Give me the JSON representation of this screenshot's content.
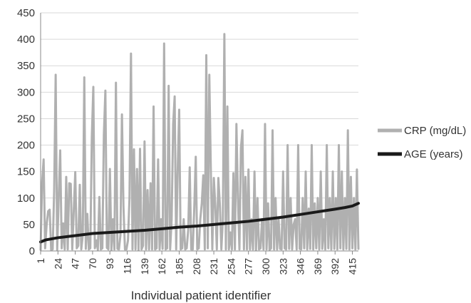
{
  "chart_data": {
    "type": "line",
    "xlabel": "Individual patient identifier",
    "ylabel": "",
    "ylim": [
      0,
      450
    ],
    "yticks": [
      0,
      50,
      100,
      150,
      200,
      250,
      300,
      350,
      400,
      450
    ],
    "xlim": [
      1,
      423
    ],
    "xticks": [
      1,
      24,
      47,
      70,
      93,
      116,
      139,
      162,
      185,
      208,
      231,
      254,
      277,
      300,
      323,
      346,
      369,
      392,
      415
    ],
    "grid": true,
    "legend_position": "right",
    "colors": {
      "crp": "#b0b0b0",
      "age": "#1a1a1a",
      "grid": "#d9d9d9",
      "axis": "#888888"
    },
    "series": [
      {
        "name": "CRP (mg/dL)",
        "key": "crp",
        "points": [
          [
            1,
            2
          ],
          [
            3,
            130
          ],
          [
            5,
            173
          ],
          [
            7,
            5
          ],
          [
            9,
            50
          ],
          [
            11,
            75
          ],
          [
            13,
            78
          ],
          [
            15,
            2
          ],
          [
            17,
            3
          ],
          [
            19,
            114
          ],
          [
            21,
            333
          ],
          [
            23,
            2
          ],
          [
            25,
            100
          ],
          [
            27,
            190
          ],
          [
            29,
            5
          ],
          [
            31,
            52
          ],
          [
            33,
            3
          ],
          [
            35,
            140
          ],
          [
            37,
            3
          ],
          [
            39,
            128
          ],
          [
            41,
            127
          ],
          [
            43,
            3
          ],
          [
            45,
            75
          ],
          [
            47,
            149
          ],
          [
            49,
            5
          ],
          [
            51,
            10
          ],
          [
            53,
            125
          ],
          [
            55,
            3
          ],
          [
            57,
            30
          ],
          [
            59,
            328
          ],
          [
            61,
            4
          ],
          [
            63,
            70
          ],
          [
            65,
            3
          ],
          [
            67,
            5
          ],
          [
            69,
            215
          ],
          [
            71,
            310
          ],
          [
            73,
            5
          ],
          [
            75,
            20
          ],
          [
            77,
            2
          ],
          [
            79,
            102
          ],
          [
            81,
            3
          ],
          [
            83,
            5
          ],
          [
            85,
            220
          ],
          [
            87,
            303
          ],
          [
            89,
            6
          ],
          [
            91,
            3
          ],
          [
            93,
            155
          ],
          [
            95,
            2
          ],
          [
            97,
            60
          ],
          [
            99,
            3
          ],
          [
            101,
            318
          ],
          [
            103,
            4
          ],
          [
            105,
            3
          ],
          [
            107,
            30
          ],
          [
            109,
            258
          ],
          [
            111,
            84
          ],
          [
            113,
            3
          ],
          [
            115,
            3
          ],
          [
            117,
            20
          ],
          [
            119,
            100
          ],
          [
            121,
            373
          ],
          [
            123,
            3
          ],
          [
            125,
            192
          ],
          [
            127,
            3
          ],
          [
            129,
            155
          ],
          [
            131,
            2
          ],
          [
            133,
            193
          ],
          [
            135,
            3
          ],
          [
            137,
            10
          ],
          [
            139,
            207
          ],
          [
            141,
            3
          ],
          [
            143,
            115
          ],
          [
            145,
            3
          ],
          [
            147,
            128
          ],
          [
            149,
            3
          ],
          [
            151,
            273
          ],
          [
            153,
            3
          ],
          [
            155,
            5
          ],
          [
            157,
            173
          ],
          [
            159,
            3
          ],
          [
            161,
            60
          ],
          [
            163,
            4
          ],
          [
            165,
            392
          ],
          [
            167,
            3
          ],
          [
            169,
            5
          ],
          [
            171,
            312
          ],
          [
            173,
            3
          ],
          [
            175,
            60
          ],
          [
            177,
            240
          ],
          [
            179,
            292
          ],
          [
            181,
            3
          ],
          [
            183,
            150
          ],
          [
            185,
            267
          ],
          [
            187,
            3
          ],
          [
            189,
            5
          ],
          [
            191,
            60
          ],
          [
            193,
            3
          ],
          [
            195,
            5
          ],
          [
            197,
            40
          ],
          [
            199,
            158
          ],
          [
            201,
            3
          ],
          [
            203,
            3
          ],
          [
            205,
            80
          ],
          [
            207,
            178
          ],
          [
            209,
            3
          ],
          [
            211,
            5
          ],
          [
            213,
            60
          ],
          [
            215,
            90
          ],
          [
            217,
            143
          ],
          [
            219,
            3
          ],
          [
            221,
            370
          ],
          [
            223,
            5
          ],
          [
            225,
            333
          ],
          [
            227,
            156
          ],
          [
            229,
            3
          ],
          [
            231,
            138
          ],
          [
            233,
            85
          ],
          [
            235,
            3
          ],
          [
            237,
            138
          ],
          [
            239,
            88
          ],
          [
            241,
            3
          ],
          [
            243,
            60
          ],
          [
            245,
            410
          ],
          [
            247,
            3
          ],
          [
            249,
            273
          ],
          [
            251,
            3
          ],
          [
            253,
            35
          ],
          [
            255,
            3
          ],
          [
            257,
            147
          ],
          [
            259,
            3
          ],
          [
            261,
            240
          ],
          [
            263,
            100
          ],
          [
            265,
            3
          ],
          [
            267,
            195
          ],
          [
            269,
            228
          ],
          [
            271,
            3
          ],
          [
            273,
            140
          ],
          [
            275,
            3
          ],
          [
            277,
            154
          ],
          [
            279,
            3
          ],
          [
            281,
            60
          ],
          [
            283,
            3
          ],
          [
            285,
            150
          ],
          [
            287,
            2
          ],
          [
            289,
            100
          ],
          [
            291,
            3
          ],
          [
            293,
            5
          ],
          [
            295,
            60
          ],
          [
            297,
            3
          ],
          [
            299,
            240
          ],
          [
            301,
            3
          ],
          [
            303,
            90
          ],
          [
            305,
            2
          ],
          [
            307,
            5
          ],
          [
            309,
            228
          ],
          [
            311,
            3
          ],
          [
            313,
            100
          ],
          [
            315,
            3
          ],
          [
            317,
            60
          ],
          [
            319,
            4
          ],
          [
            321,
            3
          ],
          [
            323,
            150
          ],
          [
            325,
            5
          ],
          [
            327,
            3
          ],
          [
            329,
            200
          ],
          [
            331,
            4
          ],
          [
            333,
            100
          ],
          [
            335,
            3
          ],
          [
            337,
            50
          ],
          [
            339,
            60
          ],
          [
            341,
            3
          ],
          [
            343,
            200
          ],
          [
            345,
            4
          ],
          [
            347,
            3
          ],
          [
            349,
            100
          ],
          [
            351,
            5
          ],
          [
            353,
            150
          ],
          [
            355,
            3
          ],
          [
            357,
            80
          ],
          [
            359,
            4
          ],
          [
            361,
            200
          ],
          [
            363,
            3
          ],
          [
            365,
            90
          ],
          [
            367,
            5
          ],
          [
            369,
            100
          ],
          [
            371,
            3
          ],
          [
            373,
            150
          ],
          [
            375,
            4
          ],
          [
            377,
            60
          ],
          [
            379,
            3
          ],
          [
            381,
            200
          ],
          [
            383,
            5
          ],
          [
            385,
            100
          ],
          [
            387,
            3
          ],
          [
            389,
            150
          ],
          [
            391,
            4
          ],
          [
            393,
            100
          ],
          [
            395,
            3
          ],
          [
            397,
            200
          ],
          [
            399,
            5
          ],
          [
            401,
            150
          ],
          [
            403,
            3
          ],
          [
            405,
            100
          ],
          [
            407,
            4
          ],
          [
            409,
            228
          ],
          [
            411,
            3
          ],
          [
            413,
            140
          ],
          [
            415,
            5
          ],
          [
            417,
            100
          ],
          [
            419,
            3
          ],
          [
            421,
            154
          ],
          [
            423,
            4
          ]
        ]
      },
      {
        "name": "AGE (years)",
        "key": "age",
        "points": [
          [
            1,
            17
          ],
          [
            8,
            21
          ],
          [
            24,
            25
          ],
          [
            47,
            29
          ],
          [
            70,
            33
          ],
          [
            93,
            35
          ],
          [
            116,
            37
          ],
          [
            139,
            39
          ],
          [
            162,
            42
          ],
          [
            185,
            45
          ],
          [
            208,
            47
          ],
          [
            231,
            50
          ],
          [
            254,
            53
          ],
          [
            277,
            56
          ],
          [
            300,
            60
          ],
          [
            323,
            64
          ],
          [
            346,
            69
          ],
          [
            369,
            74
          ],
          [
            392,
            79
          ],
          [
            405,
            82
          ],
          [
            415,
            85
          ],
          [
            423,
            90
          ]
        ]
      }
    ]
  }
}
